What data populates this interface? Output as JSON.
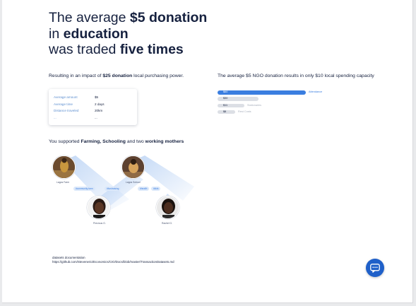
{
  "headline": {
    "line1_prefix": "The average ",
    "line1_bold": "$5 donation",
    "line2_prefix": "in ",
    "line2_bold": "education",
    "line3_prefix": "was traded ",
    "line3_bold": "five times"
  },
  "impact_text": {
    "prefix": "Resulting in an impact of ",
    "bold": "$25 donation",
    "suffix": " local purchasing power."
  },
  "stats": {
    "rows": [
      {
        "label": "Average amount",
        "value": "$5"
      },
      {
        "label": "Average time",
        "value": "2 days"
      },
      {
        "label": "Distance traveled",
        "value": "20km"
      },
      {
        "label": "...",
        "value": "..."
      }
    ]
  },
  "comparison": {
    "heading": "The average $5 NGO donation results in only $10 local spending capacity",
    "bars": [
      {
        "value_label": "$60",
        "side_label": "Attendance",
        "level": 0.5,
        "highlight": true
      },
      {
        "value_label": "$30",
        "side_label": "",
        "level": 0.23,
        "highlight": false
      },
      {
        "value_label": "$11",
        "side_label": "Stationaries",
        "level": 0.15,
        "highlight": false
      },
      {
        "value_label": "$8",
        "side_label": "Rest Costs",
        "level": 0.1,
        "highlight": false
      }
    ]
  },
  "supported": {
    "prefix": "You supported ",
    "bold1": "Farming, Schooling",
    "middle": " and two ",
    "bold2": "working mothers"
  },
  "network": {
    "nodes": [
      {
        "name": "Lagos Farm"
      },
      {
        "name": "Lagos School"
      },
      {
        "name": "Precious G."
      },
      {
        "name": "Rachel G."
      }
    ],
    "chips": [
      "#community-farm",
      "#fundraising",
      "#health",
      "#kids"
    ]
  },
  "references": {
    "line1": "datasets documentation",
    "line2": "https://github.com/Stevenerio/Economics/CIO/Docs/blob/master/TransactionDatasets.md"
  },
  "colors": {
    "navy": "#16213f",
    "accent_blue": "#3b7ee0",
    "chat_blue": "#1f60c9"
  },
  "icons": {
    "chat_button": "chat-bubble-icon"
  }
}
